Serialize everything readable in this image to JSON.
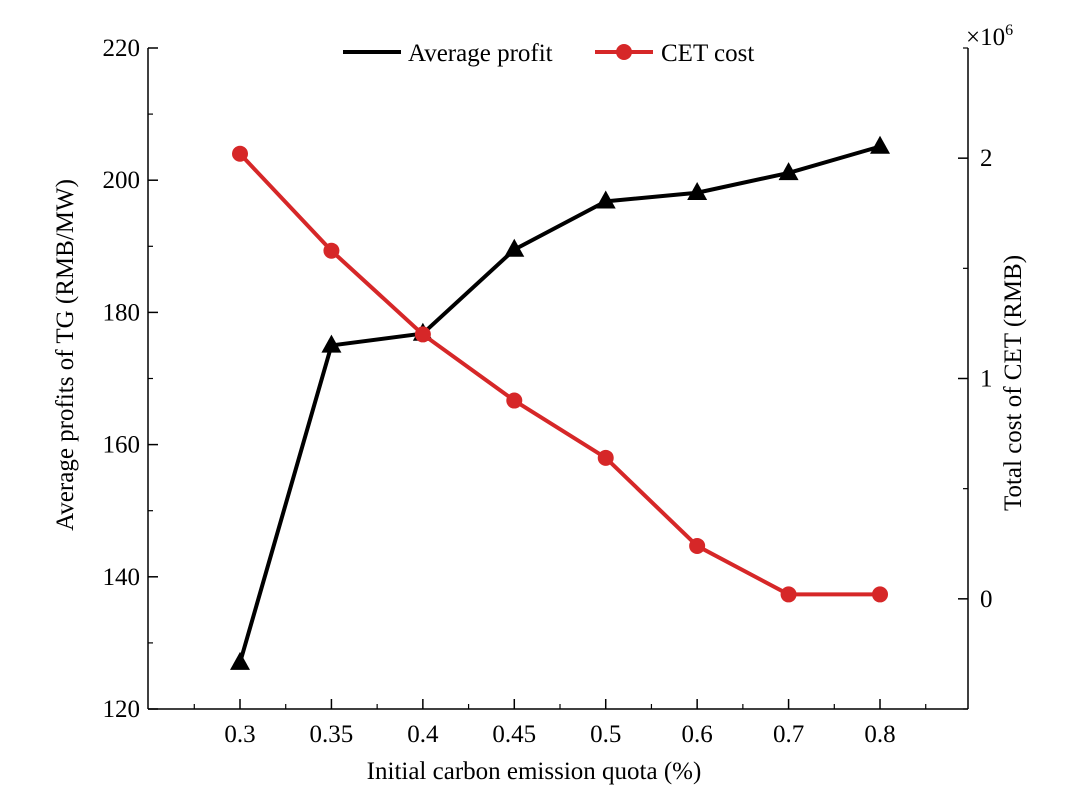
{
  "chart_data": {
    "type": "line",
    "categories": [
      "0.3",
      "0.35",
      "0.4",
      "0.45",
      "0.5",
      "0.6",
      "0.7",
      "0.8"
    ],
    "xlabel": "Initial carbon emission quota (%)",
    "ylabel": "Average profits of TG (RMB/MW)",
    "y2label": "Total cost of CET (RMB)",
    "y2_multiplier": "×10",
    "y2_multiplier_exp": "6",
    "ylim": [
      120,
      220
    ],
    "yticks": [
      "120",
      "140",
      "160",
      "180",
      "200",
      "220"
    ],
    "y2lim": [
      -0.5,
      2.5
    ],
    "y2ticks": [
      "0",
      "1",
      "2"
    ],
    "series": [
      {
        "name": "Average profit",
        "axis": "left",
        "color": "#000000",
        "marker": "triangle",
        "values": [
          127,
          175,
          176.8,
          189.5,
          196.8,
          198.1,
          201.1,
          205.1
        ]
      },
      {
        "name": "CET cost",
        "axis": "right",
        "color": "#d62728",
        "marker": "circle",
        "values": [
          2.02,
          1.58,
          1.2,
          0.9,
          0.64,
          0.24,
          0.02,
          0.02
        ]
      }
    ],
    "legend_position": "top-center",
    "grid": false
  }
}
